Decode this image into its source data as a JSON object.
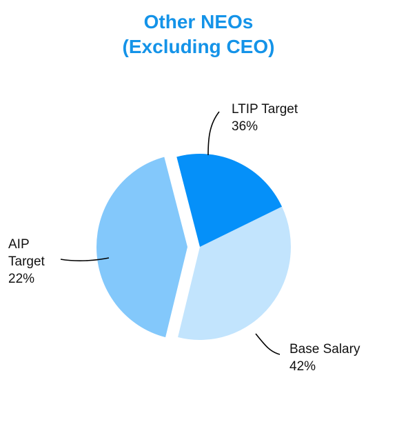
{
  "chart_data": {
    "type": "pie",
    "title_line1": "Other NEOs",
    "title_line2": "(Excluding CEO)",
    "slices": [
      {
        "name": "LTIP Target",
        "label_lines": [
          "LTIP Target"
        ],
        "value": 36,
        "value_label": "36%",
        "color": "#c2e4fd"
      },
      {
        "name": "Base Salary",
        "label_lines": [
          "Base Salary"
        ],
        "value": 42,
        "value_label": "42%",
        "color": "#83c8fb"
      },
      {
        "name": "AIP Target",
        "label_lines": [
          "AIP",
          "Target"
        ],
        "value": 22,
        "value_label": "22%",
        "color": "#0590f9"
      }
    ],
    "exploded_slice": "Base Salary"
  },
  "colors": {
    "title": "#1493e8",
    "label_text": "#111111",
    "leader_line": "#000000"
  }
}
